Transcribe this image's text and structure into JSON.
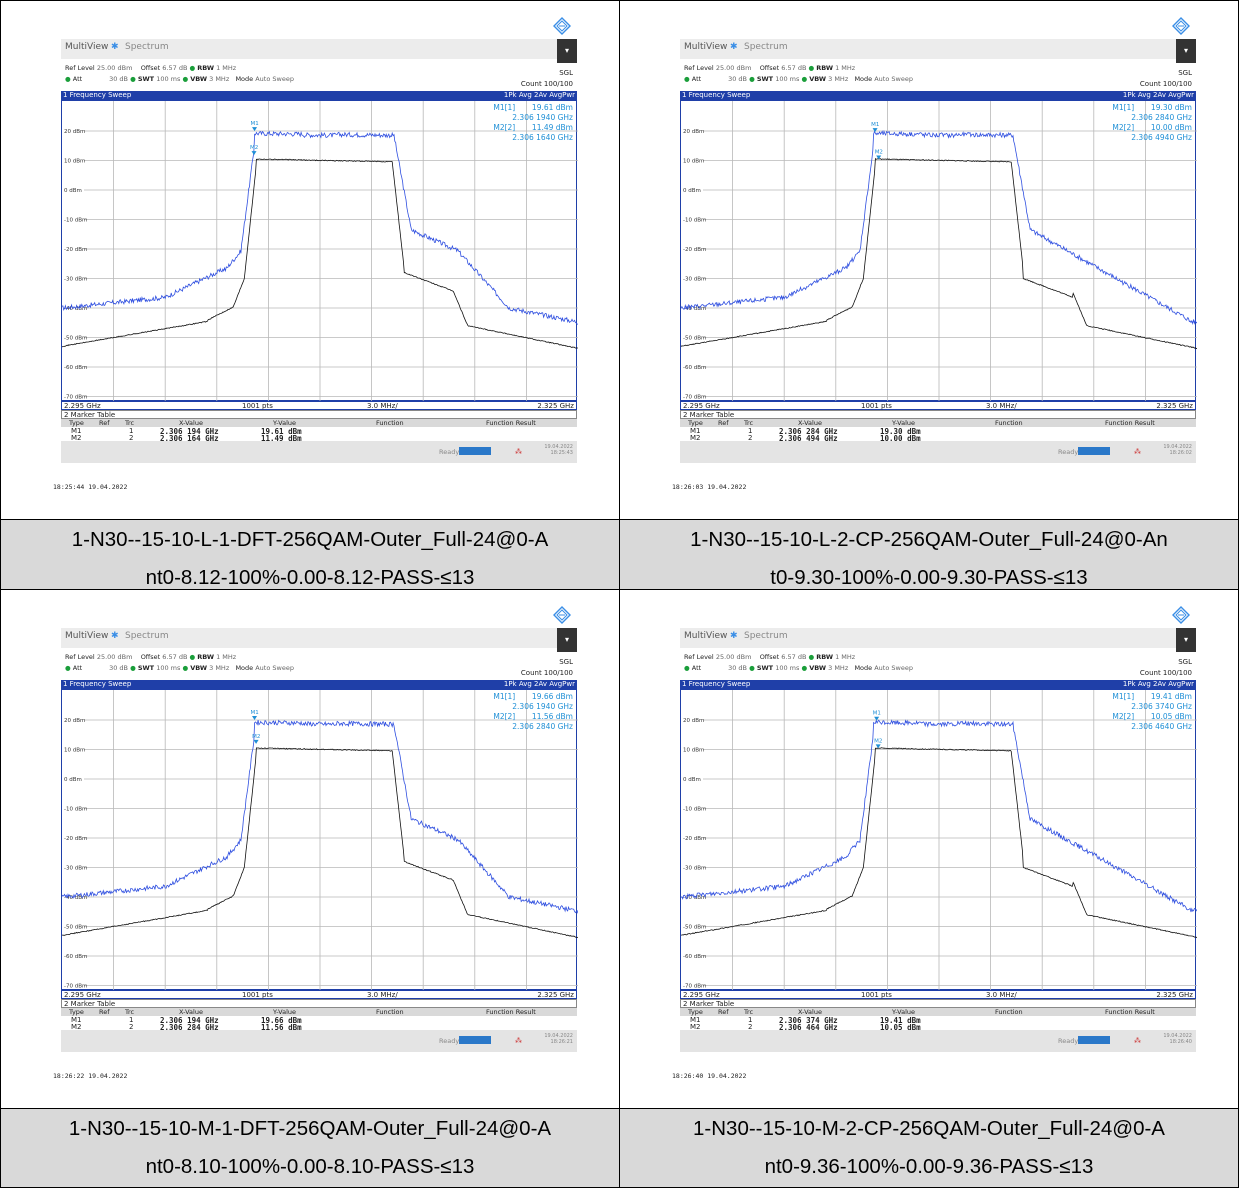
{
  "common": {
    "tab1": "MultiView",
    "tab2": "Spectrum",
    "ref_level_label": "Ref Level",
    "ref_level_value": "25.00 dBm",
    "offset_label": "Offset",
    "offset_value": "6.57 dB",
    "rbw_label": "RBW",
    "rbw_value": "1 MHz",
    "att_label": "Att",
    "att_value": "30 dB",
    "swt_label": "SWT",
    "swt_value": "100 ms",
    "vbw_label": "VBW",
    "vbw_value": "3 MHz",
    "mode_label": "Mode",
    "mode_value": "Auto Sweep",
    "sgl": "SGL",
    "count": "Count 100/100",
    "sweep_title": "1 Frequency Sweep",
    "trace_legend": "1Pk Avg  2Av AvgPwr",
    "start_freq": "2.295 GHz",
    "points": "1001 pts",
    "span_div": "3.0 MHz/",
    "stop_freq": "2.325 GHz",
    "marker_table_title": "2 Marker Table",
    "col_type": "Type",
    "col_ref": "Ref",
    "col_trc": "Trc",
    "col_x": "X-Value",
    "col_y": "Y-Value",
    "col_function": "Function",
    "col_function_result": "Function Result",
    "ready": "Ready",
    "y_labels": [
      "20 dBm",
      "10 dBm",
      "0 dBm",
      "-10 dBm",
      "-20 dBm",
      "-30 dBm",
      "-40 dBm",
      "-50 dBm",
      "-60 dBm",
      "-70 dBm"
    ],
    "marker1_name": "M1",
    "marker2_name": "M2",
    "marker1_ref": "M1[1]",
    "marker2_ref": "M2[2]",
    "trc1": "1",
    "trc2": "2",
    "status_date": "19.04.2022"
  },
  "panels": [
    {
      "m1_y": "19.61 dBm",
      "m1_x": "2.306 1940 GHz",
      "m2_y": "11.49 dBm",
      "m2_x": "2.306 1640 GHz",
      "t_m1_x": "2.306 194 GHz",
      "t_m1_y": "19.61 dBm",
      "t_m2_x": "2.306 164 GHz",
      "t_m2_y": "11.49 dBm",
      "status_time": "18:25:43",
      "timestamp": "18:25:44  19.04.2022",
      "caption_line1": "1-N30--15-10-L-1-DFT-256QAM-Outer_Full-24@0-A",
      "caption_line2": "nt0-8.12-100%-0.00-8.12-PASS-≤13",
      "shape": "dft",
      "m1_dbm": 19.61,
      "m2_dbm": 11.49,
      "m1_mhz": 11.194,
      "m2_mhz": 11.164
    },
    {
      "m1_y": "19.30 dBm",
      "m1_x": "2.306 2840 GHz",
      "m2_y": "10.00 dBm",
      "m2_x": "2.306 4940 GHz",
      "t_m1_x": "2.306 284 GHz",
      "t_m1_y": "19.30 dBm",
      "t_m2_x": "2.306 494 GHz",
      "t_m2_y": "10.00 dBm",
      "status_time": "18:26:02",
      "timestamp": "18:26:03  19.04.2022",
      "caption_line1": "1-N30--15-10-L-2-CP-256QAM-Outer_Full-24@0-An",
      "caption_line2": "t0-9.30-100%-0.00-9.30-PASS-≤13",
      "shape": "cp",
      "m1_dbm": 19.3,
      "m2_dbm": 10.0,
      "m1_mhz": 11.284,
      "m2_mhz": 11.494
    },
    {
      "m1_y": "19.66 dBm",
      "m1_x": "2.306 1940 GHz",
      "m2_y": "11.56 dBm",
      "m2_x": "2.306 2840 GHz",
      "t_m1_x": "2.306 194 GHz",
      "t_m1_y": "19.66 dBm",
      "t_m2_x": "2.306 284 GHz",
      "t_m2_y": "11.56 dBm",
      "status_time": "18:26:21",
      "timestamp": "18:26:22  19.04.2022",
      "caption_line1": "1-N30--15-10-M-1-DFT-256QAM-Outer_Full-24@0-A",
      "caption_line2": "nt0-8.10-100%-0.00-8.10-PASS-≤13",
      "shape": "dft",
      "m1_dbm": 19.66,
      "m2_dbm": 11.56,
      "m1_mhz": 11.194,
      "m2_mhz": 11.284
    },
    {
      "m1_y": "19.41 dBm",
      "m1_x": "2.306 3740 GHz",
      "m2_y": "10.05 dBm",
      "m2_x": "2.306 4640 GHz",
      "t_m1_x": "2.306 374 GHz",
      "t_m1_y": "19.41 dBm",
      "t_m2_x": "2.306 464 GHz",
      "t_m2_y": "10.05 dBm",
      "status_time": "18:26:40",
      "timestamp": "18:26:40  19.04.2022",
      "caption_line1": "1-N30--15-10-M-2-CP-256QAM-Outer_Full-24@0-A",
      "caption_line2": "nt0-9.36-100%-0.00-9.36-PASS-≤13",
      "shape": "cp",
      "m1_dbm": 19.41,
      "m2_dbm": 10.05,
      "m1_mhz": 11.374,
      "m2_mhz": 11.464
    }
  ],
  "colors": {
    "trace1": "#2f4fe0",
    "trace2": "#111111",
    "header": "#1f3fa8",
    "marker_text": "#1f8fd6",
    "caption_bg": "#d9d9d9"
  }
}
